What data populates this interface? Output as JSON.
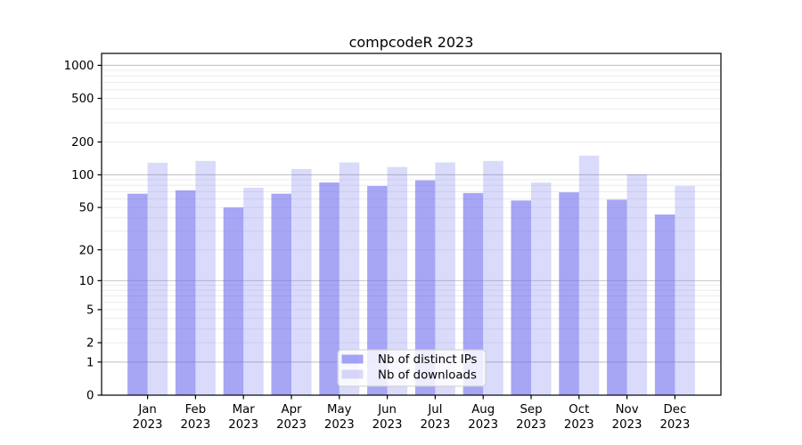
{
  "chart_data": {
    "type": "bar",
    "title": "compcodeR 2023",
    "categories": [
      "Jan",
      "Feb",
      "Mar",
      "Apr",
      "May",
      "Jun",
      "Jul",
      "Aug",
      "Sep",
      "Oct",
      "Nov",
      "Dec"
    ],
    "category_year": "2023",
    "series": [
      {
        "name": "Nb of distinct IPs",
        "values": [
          67,
          72,
          50,
          67,
          85,
          79,
          89,
          68,
          58,
          69,
          59,
          43
        ],
        "opacity": 0.6
      },
      {
        "name": "Nb of downloads",
        "values": [
          129,
          134,
          76,
          113,
          130,
          118,
          130,
          134,
          85,
          150,
          101,
          79
        ],
        "opacity": 0.25
      }
    ],
    "y_scale": "log10(x+1)",
    "y_tick_labels": [
      "0",
      "1",
      "2",
      "5",
      "10",
      "20",
      "50",
      "100",
      "200",
      "500",
      "1000"
    ],
    "y_tick_values": [
      0,
      1,
      2,
      5,
      10,
      20,
      50,
      100,
      200,
      500,
      1000
    ],
    "major_grid_values": [
      1,
      10,
      100,
      1000
    ],
    "minor_grid_values": [
      2,
      3,
      4,
      5,
      6,
      7,
      8,
      9,
      20,
      30,
      40,
      50,
      60,
      70,
      80,
      90,
      200,
      300,
      400,
      500,
      600,
      700,
      800,
      900
    ],
    "grid": true,
    "legend_position": "lower center",
    "colors": {
      "bar_base": "#6b6bee",
      "major_grid": "#c6c6c6",
      "minor_grid": "#ececec",
      "axis": "#000000",
      "tick_label": "#000000",
      "legend_border": "#cccccc",
      "legend_fill": "#ffffff"
    }
  }
}
